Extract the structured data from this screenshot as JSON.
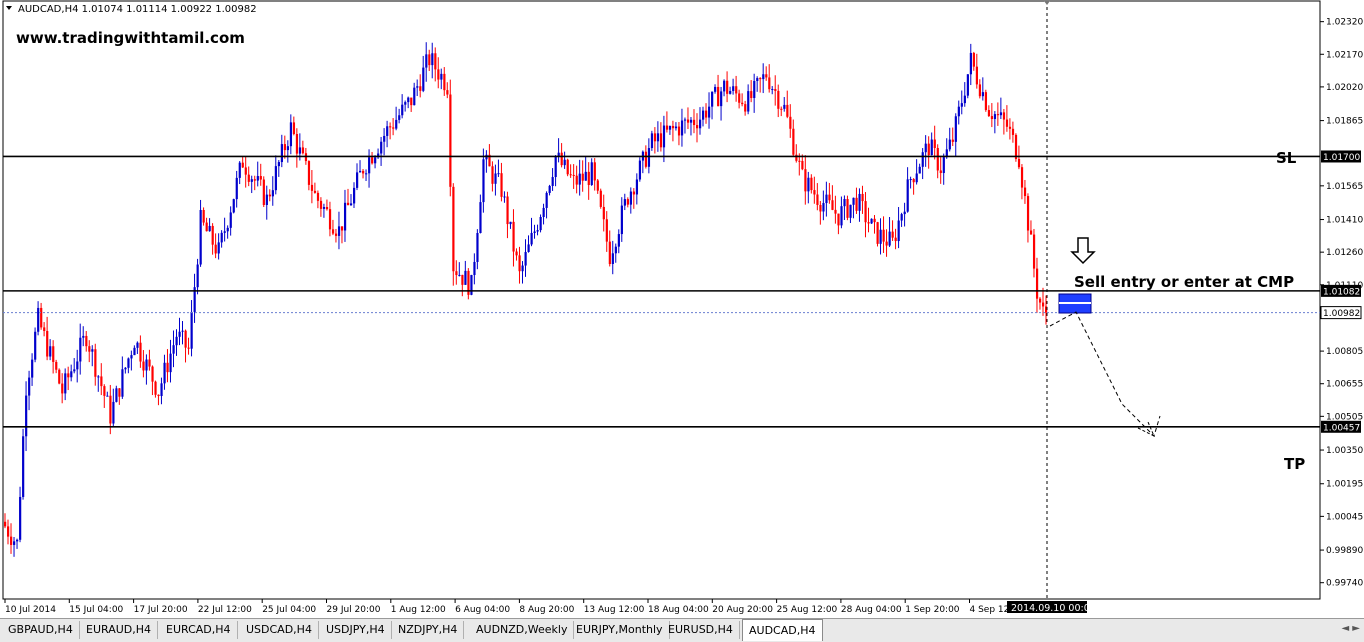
{
  "chart_data": {
    "type": "candlestick",
    "symbol_header": "AUDCAD,H4  1.01074 1.01114 1.00922 1.00982",
    "watermark": "www.tradingwithtamil.com",
    "ylim": [
      0.99665,
      1.02415
    ],
    "y_ticks": [
      "1.02320",
      "1.02170",
      "1.02020",
      "1.01865",
      "1.01565",
      "1.01410",
      "1.01260",
      "1.01110",
      "1.00805",
      "1.00655",
      "1.00505",
      "1.00350",
      "1.00195",
      "1.00045",
      "0.99890",
      "0.99740"
    ],
    "x_ticks": [
      "10 Jul 2014",
      "15 Jul 04:00",
      "17 Jul 20:00",
      "22 Jul 12:00",
      "25 Jul 04:00",
      "29 Jul 20:00",
      "1 Aug 12:00",
      "6 Aug 04:00",
      "8 Aug 20:00",
      "13 Aug 12:00",
      "18 Aug 04:00",
      "20 Aug 20:00",
      "25 Aug 12:00",
      "28 Aug 04:00",
      "1 Sep 20:00",
      "4 Sep 12:00"
    ],
    "current_time_label": "2014.09.10 00:00",
    "bull_color": "#0000cc",
    "bear_color": "#ff0000",
    "levels": [
      {
        "name": "SL",
        "price": 1.017,
        "label": "1.01700"
      },
      {
        "name": "Entry",
        "price": 1.01082,
        "label": "1.01082"
      },
      {
        "name": "TP",
        "price": 1.00457,
        "label": "1.00457"
      }
    ],
    "bid_price": 1.00982,
    "bid_label": "1.00982",
    "annotations": {
      "sl": "SL",
      "tp": "TP",
      "entry": "Sell entry or enter at CMP"
    },
    "anchors": [
      {
        "i": 0,
        "p": 1.0002
      },
      {
        "i": 5,
        "p": 0.9992
      },
      {
        "i": 8,
        "p": 1.0065
      },
      {
        "i": 12,
        "p": 1.0095
      },
      {
        "i": 20,
        "p": 1.0062
      },
      {
        "i": 28,
        "p": 1.0088
      },
      {
        "i": 36,
        "p": 1.0051
      },
      {
        "i": 44,
        "p": 1.0086
      },
      {
        "i": 52,
        "p": 1.0062
      },
      {
        "i": 58,
        "p": 1.0088
      },
      {
        "i": 62,
        "p": 1.0081
      },
      {
        "i": 66,
        "p": 1.014
      },
      {
        "i": 72,
        "p": 1.0126
      },
      {
        "i": 80,
        "p": 1.0168
      },
      {
        "i": 88,
        "p": 1.015
      },
      {
        "i": 96,
        "p": 1.0183
      },
      {
        "i": 104,
        "p": 1.0152
      },
      {
        "i": 112,
        "p": 1.0136
      },
      {
        "i": 120,
        "p": 1.0165
      },
      {
        "i": 128,
        "p": 1.0182
      },
      {
        "i": 136,
        "p": 1.0196
      },
      {
        "i": 142,
        "p": 1.0215
      },
      {
        "i": 148,
        "p": 1.0203
      },
      {
        "i": 150,
        "p": 1.012
      },
      {
        "i": 156,
        "p": 1.011
      },
      {
        "i": 160,
        "p": 1.0168
      },
      {
        "i": 166,
        "p": 1.0155
      },
      {
        "i": 172,
        "p": 1.0115
      },
      {
        "i": 178,
        "p": 1.014
      },
      {
        "i": 184,
        "p": 1.017
      },
      {
        "i": 190,
        "p": 1.0158
      },
      {
        "i": 196,
        "p": 1.0162
      },
      {
        "i": 202,
        "p": 1.0125
      },
      {
        "i": 208,
        "p": 1.0152
      },
      {
        "i": 216,
        "p": 1.0176
      },
      {
        "i": 224,
        "p": 1.0183
      },
      {
        "i": 232,
        "p": 1.0188
      },
      {
        "i": 240,
        "p": 1.0202
      },
      {
        "i": 248,
        "p": 1.0195
      },
      {
        "i": 254,
        "p": 1.0208
      },
      {
        "i": 260,
        "p": 1.0192
      },
      {
        "i": 266,
        "p": 1.016
      },
      {
        "i": 272,
        "p": 1.015
      },
      {
        "i": 278,
        "p": 1.0143
      },
      {
        "i": 284,
        "p": 1.015
      },
      {
        "i": 290,
        "p": 1.0135
      },
      {
        "i": 296,
        "p": 1.013
      },
      {
        "i": 302,
        "p": 1.016
      },
      {
        "i": 308,
        "p": 1.0175
      },
      {
        "i": 312,
        "p": 1.0165
      },
      {
        "i": 316,
        "p": 1.0178
      },
      {
        "i": 322,
        "p": 1.0214
      },
      {
        "i": 328,
        "p": 1.0192
      },
      {
        "i": 334,
        "p": 1.0184
      },
      {
        "i": 338,
        "p": 1.017
      },
      {
        "i": 341,
        "p": 1.014
      },
      {
        "i": 344,
        "p": 1.0108
      },
      {
        "i": 346,
        "p": 1.0098
      }
    ]
  },
  "tabs": [
    {
      "label": "GBPAUD,H4",
      "active": false
    },
    {
      "label": "EURAUD,H4",
      "active": false
    },
    {
      "label": "EURCAD,H4",
      "active": false
    },
    {
      "label": "USDCAD,H4",
      "active": false
    },
    {
      "label": "USDJPY,H4",
      "active": false
    },
    {
      "label": "NZDJPY,H4",
      "active": false
    },
    {
      "label": "AUDNZD,Weekly",
      "active": false
    },
    {
      "label": "EURJPY,Monthly",
      "active": false
    },
    {
      "label": "EURUSD,H4",
      "active": false
    },
    {
      "label": "AUDCAD,H4",
      "active": true
    }
  ],
  "tab_scroll": "◄ ►"
}
